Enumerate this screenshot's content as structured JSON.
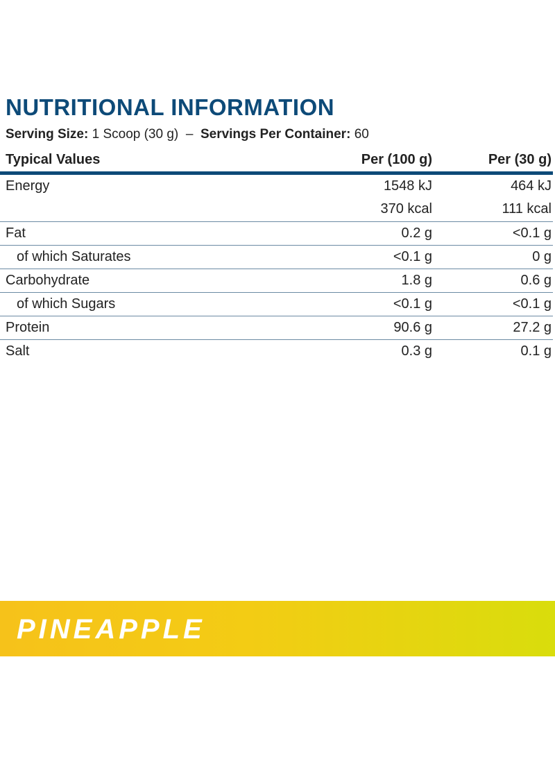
{
  "header": {
    "title": "NUTRITIONAL INFORMATION",
    "serving_size_label": "Serving Size:",
    "serving_size_value": "1 Scoop (30 g)",
    "separator": "–",
    "servings_label": "Servings Per Container:",
    "servings_value": "60"
  },
  "table": {
    "columns": [
      "Typical Values",
      "Per (100 g)",
      "Per (30 g)"
    ],
    "rows": [
      {
        "label": "Energy",
        "per_100g": [
          "1548 kJ",
          "370 kcal"
        ],
        "per_30g": [
          "464 kJ",
          "111 kcal"
        ]
      },
      {
        "label": "Fat",
        "per_100g": [
          "0.2 g"
        ],
        "per_30g": [
          "<0.1 g"
        ]
      },
      {
        "label": "of which Saturates",
        "per_100g": [
          "<0.1 g"
        ],
        "per_30g": [
          "0 g"
        ]
      },
      {
        "label": "Carbohydrate",
        "per_100g": [
          "1.8 g"
        ],
        "per_30g": [
          "0.6 g"
        ]
      },
      {
        "label": "of which Sugars",
        "per_100g": [
          "<0.1 g"
        ],
        "per_30g": [
          "<0.1 g"
        ]
      },
      {
        "label": "Protein",
        "per_100g": [
          "90.6 g"
        ],
        "per_30g": [
          "27.2 g"
        ]
      },
      {
        "label": "Salt",
        "per_100g": [
          "0.3 g"
        ],
        "per_30g": [
          "0.1 g"
        ]
      }
    ]
  },
  "banner": {
    "flavor": "PINEAPPLE"
  }
}
